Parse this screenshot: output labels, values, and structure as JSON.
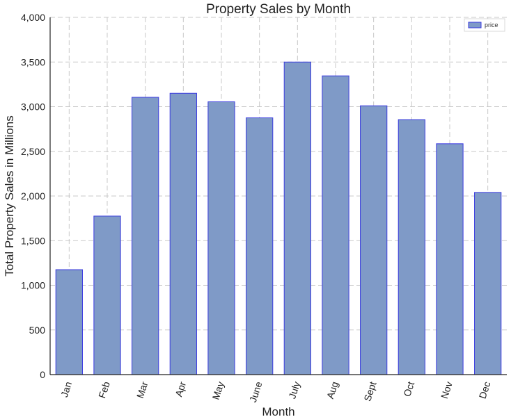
{
  "chart_data": {
    "type": "bar",
    "title": "Property Sales by Month",
    "xlabel": "Month",
    "ylabel": "Total Property Sales in Millions",
    "categories": [
      "Jan",
      "Feb",
      "Mar",
      "Apr",
      "May",
      "June",
      "July",
      "Aug",
      "Sept",
      "Oct",
      "Nov",
      "Dec"
    ],
    "series": [
      {
        "name": "price",
        "values": [
          1175,
          1775,
          3105,
          3150,
          3055,
          2875,
          3500,
          3345,
          3010,
          2855,
          2585,
          2040
        ],
        "color": "#7f9ac7",
        "edge_color": "#3a3ae0"
      }
    ],
    "ylim": [
      0,
      4000
    ],
    "yticks": [
      0,
      500,
      1000,
      1500,
      2000,
      2500,
      3000,
      3500,
      4000
    ],
    "ytick_labels": [
      "0",
      "500",
      "1,000",
      "1,500",
      "2,000",
      "2,500",
      "3,000",
      "3,500",
      "4,000"
    ],
    "grid": true,
    "legend_position": "top-right"
  }
}
